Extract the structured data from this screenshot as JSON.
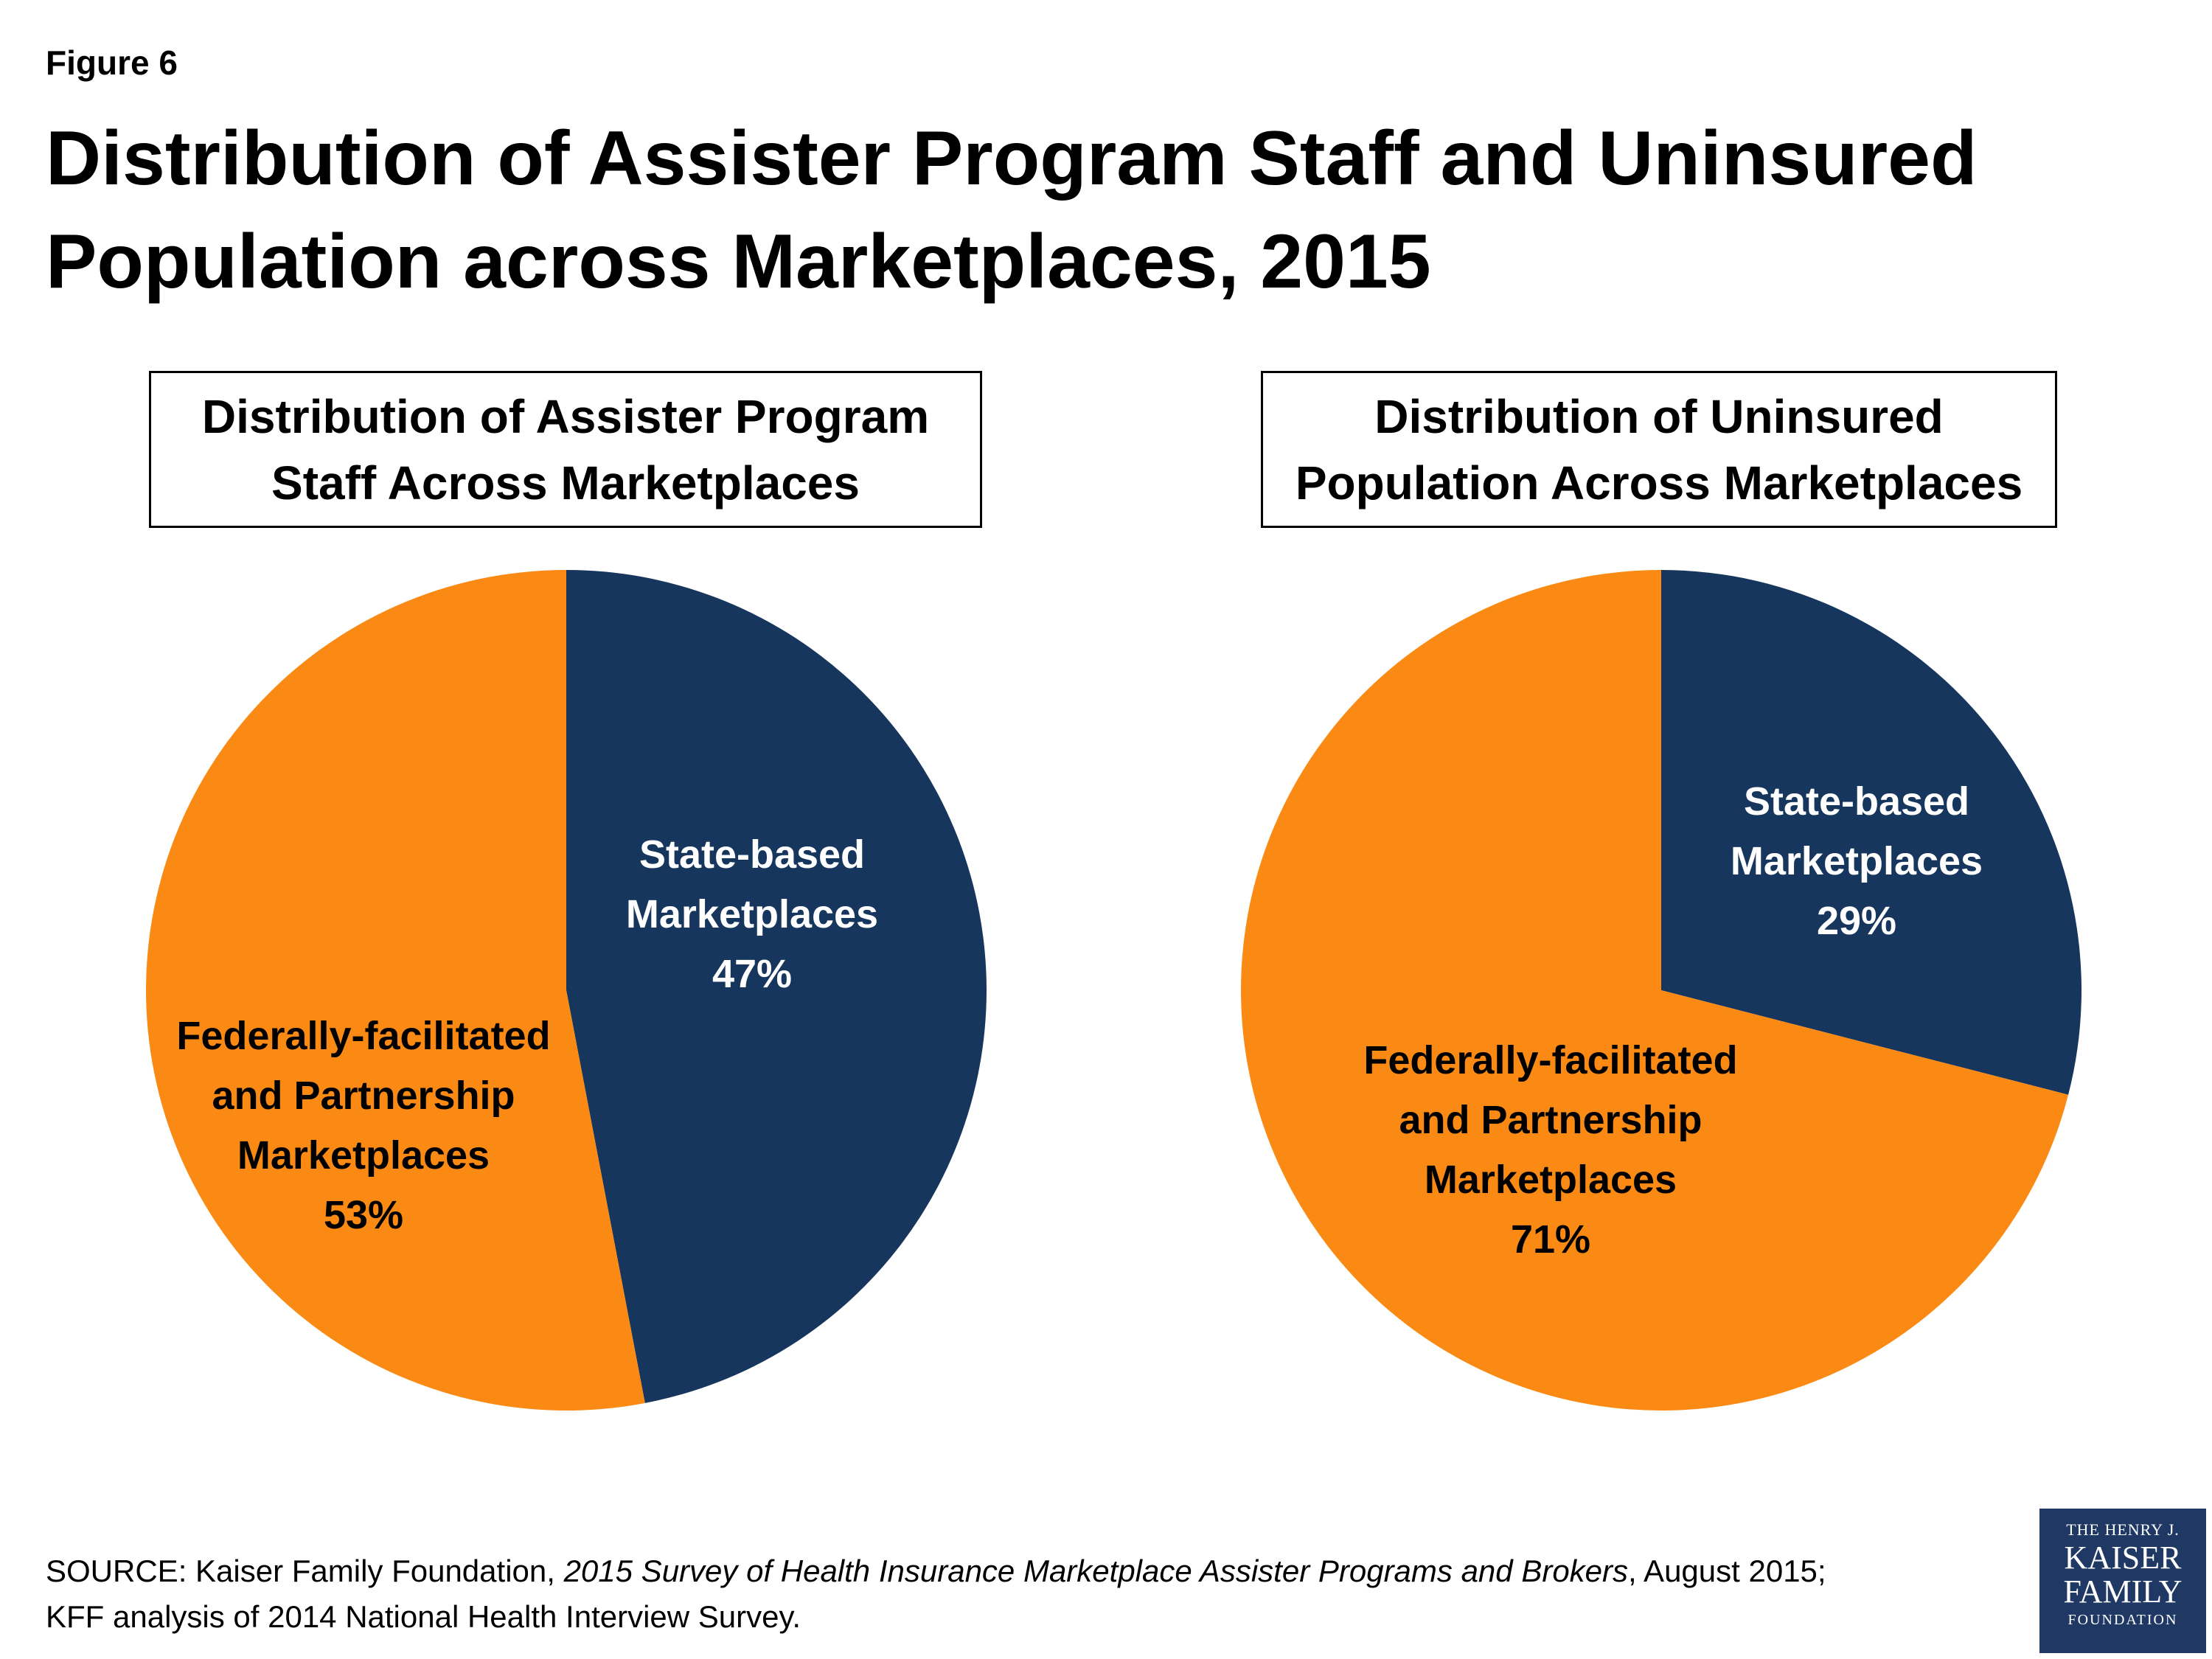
{
  "figure_label": "Figure 6",
  "title": "Distribution of Assister Program Staff and Uninsured Population across Marketplaces, 2015",
  "colors": {
    "state_based": "#17365d",
    "federal": "#fa8a14",
    "state_label_text": "#ffffff",
    "federal_label_text": "#000000"
  },
  "chart_data": [
    {
      "type": "pie",
      "title": "Distribution of Assister Program Staff Across Marketplaces",
      "slices": [
        {
          "label": "State-based Marketplaces",
          "value": 47,
          "display": "47%",
          "color": "#17365d"
        },
        {
          "label": "Federally-facilitated and Partnership Marketplaces",
          "value": 53,
          "display": "53%",
          "color": "#fa8a14"
        }
      ]
    },
    {
      "type": "pie",
      "title": "Distribution of Uninsured Population Across Marketplaces",
      "slices": [
        {
          "label": "State-based Marketplaces",
          "value": 29,
          "display": "29%",
          "color": "#17365d"
        },
        {
          "label": "Federally-facilitated and Partnership Marketplaces",
          "value": 71,
          "display": "71%",
          "color": "#fa8a14"
        }
      ]
    }
  ],
  "labels": {
    "left_state": [
      "State-based",
      "Marketplaces",
      "47%"
    ],
    "left_federal": [
      "Federally-facilitated",
      "and Partnership",
      "Marketplaces",
      "53%"
    ],
    "right_state": [
      "State-based",
      "Marketplaces",
      "29%"
    ],
    "right_federal": [
      "Federally-facilitated",
      "and Partnership",
      "Marketplaces",
      "71%"
    ]
  },
  "source": {
    "prefix": "SOURCE: Kaiser Family Foundation,  ",
    "survey": "2015 Survey of Health Insurance Marketplace Assister Programs and Brokers",
    "suffix": ", August 2015;",
    "line2": "KFF analysis of 2014 National Health Interview Survey."
  },
  "logo": {
    "line1": "THE HENRY J.",
    "line2": "KAISER",
    "line3": "FAMILY",
    "line4": "FOUNDATION"
  }
}
